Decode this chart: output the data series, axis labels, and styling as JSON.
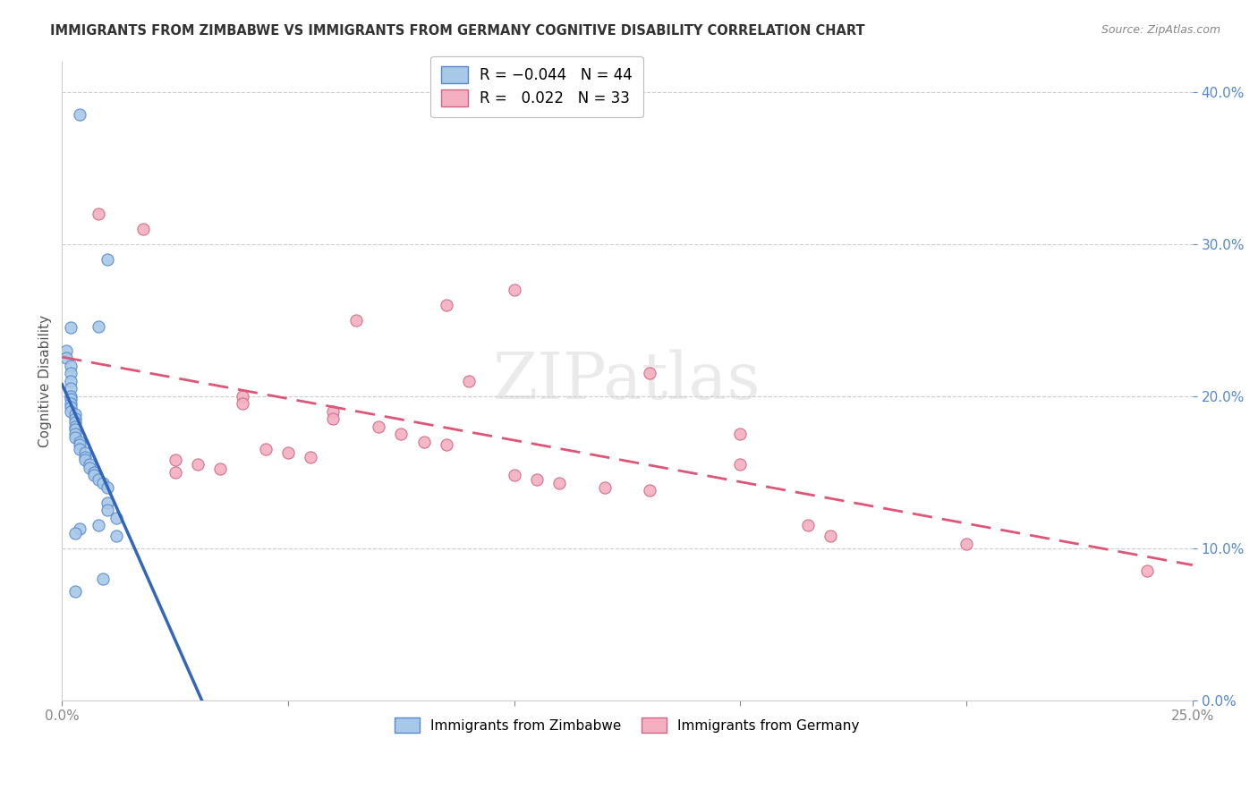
{
  "title": "IMMIGRANTS FROM ZIMBABWE VS IMMIGRANTS FROM GERMANY COGNITIVE DISABILITY CORRELATION CHART",
  "source": "Source: ZipAtlas.com",
  "ylabel": "Cognitive Disability",
  "zimbabwe_color": "#a8c8e8",
  "germany_color": "#f4b0c0",
  "zimbabwe_edge_color": "#5588cc",
  "germany_edge_color": "#cc6688",
  "zimbabwe_line_color": "#3366bb",
  "germany_line_color": "#dd5577",
  "zimbabwe_scatter": [
    [
      0.004,
      0.385
    ],
    [
      0.01,
      0.29
    ],
    [
      0.008,
      0.246
    ],
    [
      0.002,
      0.245
    ],
    [
      0.001,
      0.23
    ],
    [
      0.001,
      0.225
    ],
    [
      0.002,
      0.22
    ],
    [
      0.002,
      0.215
    ],
    [
      0.002,
      0.21
    ],
    [
      0.002,
      0.205
    ],
    [
      0.002,
      0.2
    ],
    [
      0.002,
      0.198
    ],
    [
      0.002,
      0.195
    ],
    [
      0.002,
      0.193
    ],
    [
      0.002,
      0.19
    ],
    [
      0.003,
      0.188
    ],
    [
      0.003,
      0.185
    ],
    [
      0.003,
      0.183
    ],
    [
      0.003,
      0.18
    ],
    [
      0.003,
      0.178
    ],
    [
      0.003,
      0.175
    ],
    [
      0.003,
      0.173
    ],
    [
      0.004,
      0.17
    ],
    [
      0.004,
      0.168
    ],
    [
      0.004,
      0.165
    ],
    [
      0.005,
      0.163
    ],
    [
      0.005,
      0.16
    ],
    [
      0.005,
      0.158
    ],
    [
      0.006,
      0.155
    ],
    [
      0.006,
      0.153
    ],
    [
      0.007,
      0.15
    ],
    [
      0.007,
      0.148
    ],
    [
      0.008,
      0.145
    ],
    [
      0.009,
      0.143
    ],
    [
      0.01,
      0.14
    ],
    [
      0.01,
      0.13
    ],
    [
      0.01,
      0.125
    ],
    [
      0.012,
      0.12
    ],
    [
      0.008,
      0.115
    ],
    [
      0.004,
      0.113
    ],
    [
      0.003,
      0.11
    ],
    [
      0.012,
      0.108
    ],
    [
      0.009,
      0.08
    ],
    [
      0.003,
      0.072
    ]
  ],
  "germany_scatter": [
    [
      0.008,
      0.32
    ],
    [
      0.018,
      0.31
    ],
    [
      0.1,
      0.27
    ],
    [
      0.085,
      0.26
    ],
    [
      0.065,
      0.25
    ],
    [
      0.13,
      0.215
    ],
    [
      0.09,
      0.21
    ],
    [
      0.04,
      0.2
    ],
    [
      0.04,
      0.195
    ],
    [
      0.06,
      0.19
    ],
    [
      0.06,
      0.185
    ],
    [
      0.07,
      0.18
    ],
    [
      0.075,
      0.175
    ],
    [
      0.08,
      0.17
    ],
    [
      0.085,
      0.168
    ],
    [
      0.045,
      0.165
    ],
    [
      0.05,
      0.163
    ],
    [
      0.055,
      0.16
    ],
    [
      0.025,
      0.158
    ],
    [
      0.03,
      0.155
    ],
    [
      0.035,
      0.152
    ],
    [
      0.025,
      0.15
    ],
    [
      0.1,
      0.148
    ],
    [
      0.105,
      0.145
    ],
    [
      0.11,
      0.143
    ],
    [
      0.12,
      0.14
    ],
    [
      0.13,
      0.138
    ],
    [
      0.15,
      0.175
    ],
    [
      0.15,
      0.155
    ],
    [
      0.165,
      0.115
    ],
    [
      0.17,
      0.108
    ],
    [
      0.2,
      0.103
    ],
    [
      0.24,
      0.085
    ]
  ],
  "xlim": [
    0.0,
    0.25
  ],
  "ylim": [
    0.0,
    0.42
  ],
  "background_color": "#ffffff",
  "grid_color": "#cccccc"
}
